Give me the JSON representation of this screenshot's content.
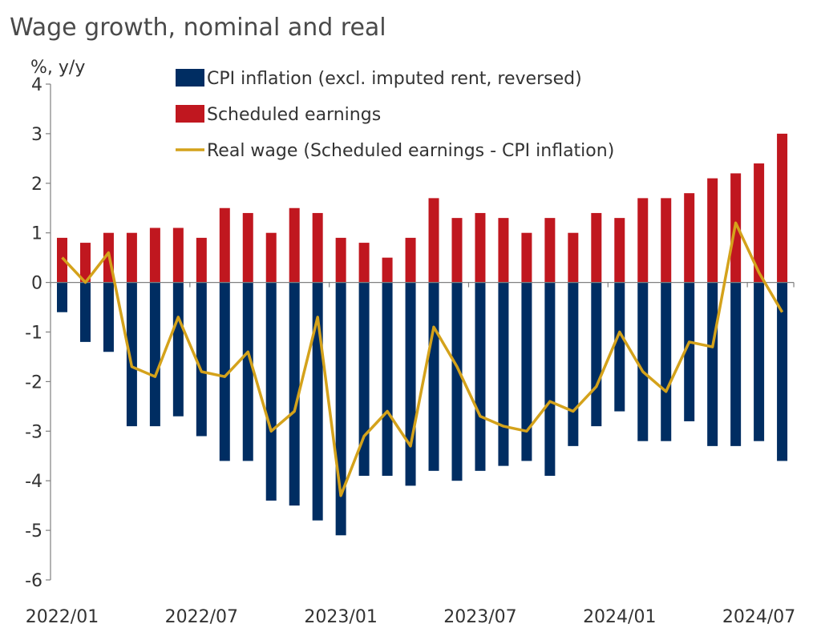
{
  "chart_data": {
    "type": "bar",
    "title": "Wage growth, nominal and real",
    "ylabel": "%, y/y",
    "ylim": [
      -6,
      4
    ],
    "yticks": [
      4,
      3,
      2,
      1,
      0,
      -1,
      -2,
      -3,
      -4,
      -5,
      -6
    ],
    "x": [
      "2022/01",
      "2022/02",
      "2022/03",
      "2022/04",
      "2022/05",
      "2022/06",
      "2022/07",
      "2022/08",
      "2022/09",
      "2022/10",
      "2022/11",
      "2022/12",
      "2023/01",
      "2023/02",
      "2023/03",
      "2023/04",
      "2023/05",
      "2023/06",
      "2023/07",
      "2023/08",
      "2023/09",
      "2023/10",
      "2023/11",
      "2023/12",
      "2024/01",
      "2024/02",
      "2024/03",
      "2024/04",
      "2024/05",
      "2024/06",
      "2024/07",
      "2024/08"
    ],
    "xtick_labels": [
      "2022/01",
      "2022/07",
      "2023/01",
      "2023/07",
      "2024/01",
      "2024/07"
    ],
    "legend_position": "top",
    "grid": false,
    "series": [
      {
        "name": "CPI inflation (excl. imputed rent, reversed)",
        "type": "bar",
        "color": "#002d62",
        "values": [
          -0.6,
          -1.2,
          -1.4,
          -2.9,
          -2.9,
          -2.7,
          -3.1,
          -3.6,
          -3.6,
          -4.4,
          -4.5,
          -4.8,
          -5.1,
          -3.9,
          -3.9,
          -4.1,
          -3.8,
          -4.0,
          -3.8,
          -3.7,
          -3.6,
          -3.9,
          -3.3,
          -2.9,
          -2.6,
          -3.2,
          -3.2,
          -2.8,
          -3.3,
          -3.3,
          -3.2,
          -3.6
        ]
      },
      {
        "name": "Scheduled earnings",
        "type": "bar",
        "color": "#c0171f",
        "values": [
          0.9,
          0.8,
          1.0,
          1.0,
          1.1,
          1.1,
          0.9,
          1.5,
          1.4,
          1.0,
          1.5,
          1.4,
          0.9,
          0.8,
          0.5,
          0.9,
          1.7,
          1.3,
          1.4,
          1.3,
          1.0,
          1.3,
          1.0,
          1.4,
          1.3,
          1.7,
          1.7,
          1.8,
          2.1,
          2.2,
          2.4,
          3.0
        ]
      },
      {
        "name": "Real wage (Scheduled earnings - CPI inflation)",
        "type": "line",
        "color": "#d4a21b",
        "values": [
          0.5,
          0.0,
          0.6,
          -1.7,
          -1.9,
          -0.7,
          -1.8,
          -1.9,
          -1.4,
          -3.0,
          -2.6,
          -0.7,
          -4.3,
          -3.1,
          -2.6,
          -3.3,
          -0.9,
          -1.7,
          -2.7,
          -2.9,
          -3.0,
          -2.4,
          -2.6,
          -2.1,
          -1.0,
          -1.8,
          -2.2,
          -1.2,
          -1.3,
          1.2,
          0.2,
          -0.6
        ]
      }
    ]
  }
}
